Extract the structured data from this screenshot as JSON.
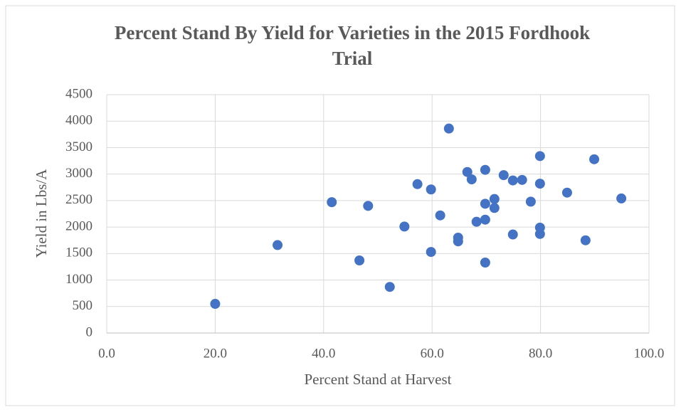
{
  "chart_data": {
    "type": "scatter",
    "title": "Percent Stand By Yield for Varieties in the 2015 Fordhook Trial",
    "x_label": "Percent Stand at Harvest",
    "y_label": "Yield in Lbs/A",
    "x": [
      20.0,
      31.5,
      41.5,
      46.6,
      48.2,
      52.2,
      54.9,
      57.3,
      59.8,
      59.8,
      61.5,
      63.1,
      64.8,
      64.8,
      66.5,
      67.3,
      68.2,
      69.8,
      69.8,
      69.8,
      69.8,
      71.5,
      71.5,
      73.2,
      74.9,
      74.9,
      76.6,
      78.2,
      79.9,
      79.9,
      79.9,
      79.9,
      84.9,
      88.3,
      89.9,
      94.9
    ],
    "values": [
      550,
      1660,
      2470,
      1370,
      2400,
      870,
      2010,
      2810,
      2710,
      1530,
      2220,
      3860,
      1800,
      1730,
      3040,
      2900,
      2100,
      3080,
      2440,
      2140,
      1330,
      2530,
      2360,
      2980,
      2880,
      1860,
      2890,
      2480,
      3340,
      2820,
      1990,
      1870,
      2650,
      1750,
      3280,
      2540
    ],
    "color": "#4472c4",
    "xlim": [
      0,
      100
    ],
    "ylim": [
      0,
      4500
    ],
    "xticks": [
      {
        "value": 0,
        "label": "0.0"
      },
      {
        "value": 20,
        "label": "20.0"
      },
      {
        "value": 40,
        "label": "40.0"
      },
      {
        "value": 60,
        "label": "60.0"
      },
      {
        "value": 80,
        "label": "80.0"
      },
      {
        "value": 100,
        "label": "100.0"
      }
    ],
    "yticks": [
      0,
      500,
      1000,
      1500,
      2000,
      2500,
      3000,
      3500,
      4000,
      4500
    ],
    "grid": true
  }
}
